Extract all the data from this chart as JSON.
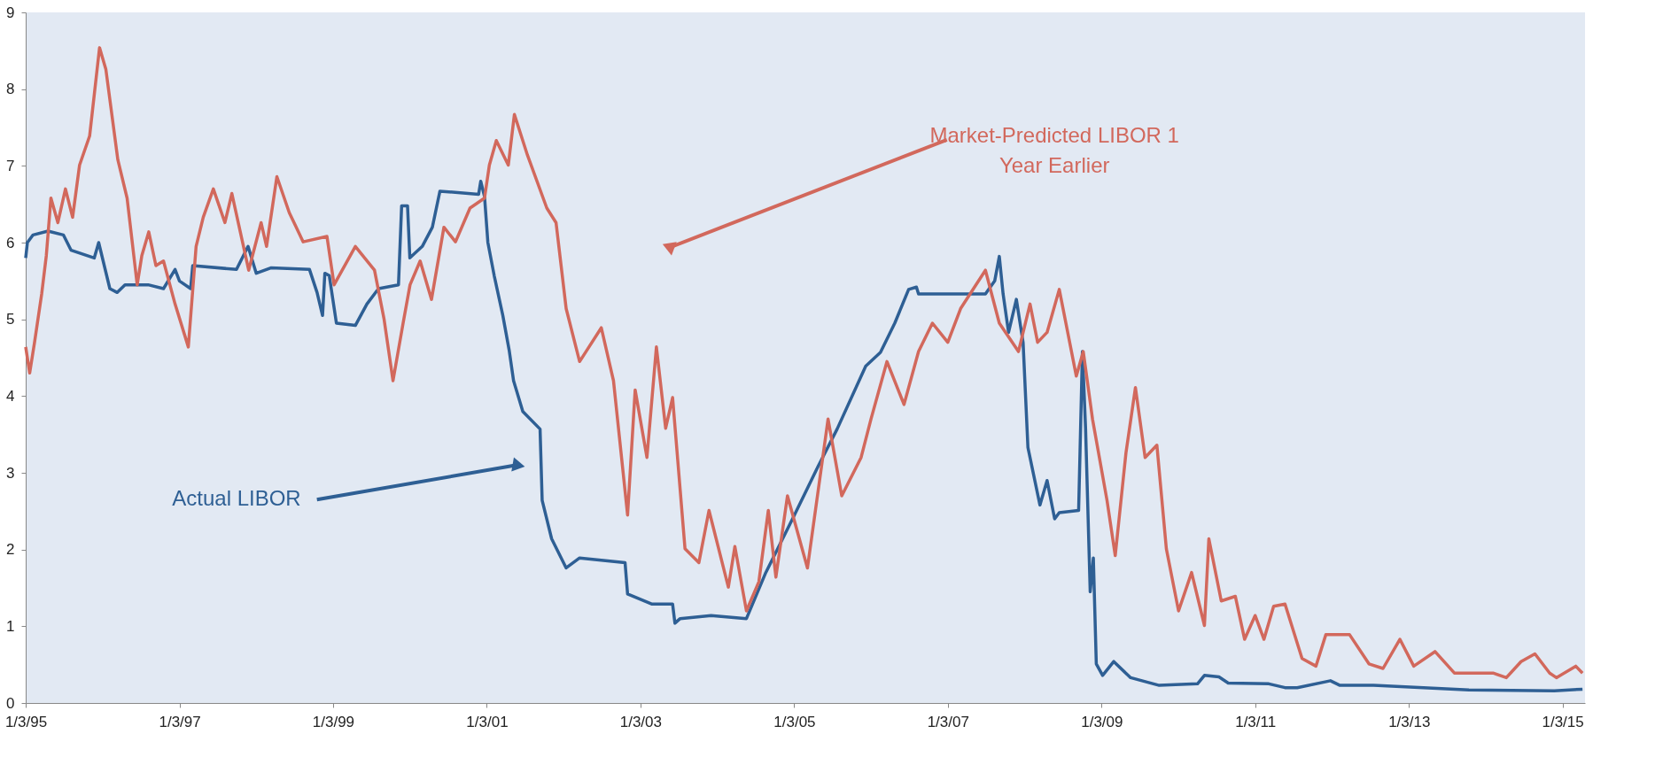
{
  "chart_data": {
    "type": "line",
    "xlim": [
      "1995-01-03",
      "2015-04-20"
    ],
    "ylim": [
      0,
      9
    ],
    "xticks": [
      {
        "value": "1995-01-03",
        "label": "1/3/95"
      },
      {
        "value": "1997-01-03",
        "label": "1/3/97"
      },
      {
        "value": "1999-01-03",
        "label": "1/3/99"
      },
      {
        "value": "2001-01-03",
        "label": "1/3/01"
      },
      {
        "value": "2003-01-03",
        "label": "1/3/03"
      },
      {
        "value": "2005-01-03",
        "label": "1/3/05"
      },
      {
        "value": "2007-01-03",
        "label": "1/3/07"
      },
      {
        "value": "2009-01-03",
        "label": "1/3/09"
      },
      {
        "value": "2011-01-03",
        "label": "1/3/11"
      },
      {
        "value": "2013-01-03",
        "label": "1/3/13"
      },
      {
        "value": "2015-01-03",
        "label": "1/3/15"
      }
    ],
    "yticks": [
      0,
      1,
      2,
      3,
      4,
      5,
      6,
      7,
      8,
      9
    ],
    "grid": false,
    "legend": false,
    "marker": "none",
    "line_style": "solid",
    "annotations": [
      {
        "text": "Actual LIBOR",
        "x": "2001-05-25",
        "y": 3.1
      },
      {
        "text": "Market-Predicted LIBOR 1\nYear Earlier",
        "x": "2003-05-25",
        "y": 5.94
      }
    ],
    "series": [
      {
        "color": "#2e5f94",
        "x": [
          "1995-01-03",
          "1995-01-11",
          "1995-02-07",
          "1995-04-19",
          "1995-07-01",
          "1995-08-07",
          "1995-11-25",
          "1995-12-16",
          "1996-02-07",
          "1996-03-13",
          "1996-04-19",
          "1996-08-07",
          "1996-10-19",
          "1996-12-13",
          "1997-01-03",
          "1997-02-25",
          "1997-03-07",
          "1997-10-01",
          "1997-11-25",
          "1998-01-03",
          "1998-03-13",
          "1998-09-13",
          "1998-10-19",
          "1998-11-14",
          "1998-11-25",
          "1998-12-16",
          "1999-01-19",
          "1999-04-19",
          "1999-06-13",
          "1999-08-07",
          "1999-11-10",
          "1999-11-25",
          "1999-12-23",
          "2000-01-03",
          "2000-03-02",
          "2000-04-19",
          "2000-05-25",
          "2000-11-25",
          "2000-12-05",
          "2000-12-23",
          "2001-01-08",
          "2001-02-07",
          "2001-03-20",
          "2001-04-19",
          "2001-05-10",
          "2001-06-23",
          "2001-09-13",
          "2001-09-23",
          "2001-11-07",
          "2002-01-15",
          "2002-03-20",
          "2002-10-22",
          "2002-11-03",
          "2003-02-25",
          "2003-06-05",
          "2003-06-16",
          "2003-07-11",
          "2003-12-05",
          "2004-05-21",
          "2004-08-21",
          "2005-01-04",
          "2005-04-26",
          "2005-07-26",
          "2005-12-09",
          "2006-02-17",
          "2006-04-26",
          "2006-07-01",
          "2006-08-07",
          "2006-08-17",
          "2007-07-01",
          "2007-08-14",
          "2007-09-05",
          "2007-09-23",
          "2007-10-19",
          "2007-11-25",
          "2007-12-27",
          "2008-01-19",
          "2008-03-16",
          "2008-04-19",
          "2008-05-25",
          "2008-06-16",
          "2008-09-16",
          "2008-10-04",
          "2008-10-19",
          "2008-11-10",
          "2008-11-25",
          "2008-12-09",
          "2009-01-08",
          "2009-03-02",
          "2009-05-21",
          "2009-10-04",
          "2010-04-04",
          "2010-05-07",
          "2010-07-15",
          "2010-08-28",
          "2011-03-09",
          "2011-05-25",
          "2011-07-22",
          "2011-12-27",
          "2012-02-10",
          "2012-07-19",
          "2013-10-15",
          "2014-11-25",
          "2015-04-08"
        ],
        "values": [
          5.8,
          6.0,
          6.1,
          6.15,
          6.1,
          5.9,
          5.8,
          6.0,
          5.4,
          5.35,
          5.45,
          5.45,
          5.4,
          5.65,
          5.5,
          5.4,
          5.7,
          5.65,
          5.95,
          5.6,
          5.67,
          5.65,
          5.35,
          5.05,
          5.6,
          5.57,
          4.95,
          4.92,
          5.2,
          5.4,
          5.45,
          6.48,
          6.48,
          5.8,
          5.95,
          6.2,
          6.67,
          6.63,
          6.8,
          6.6,
          6.0,
          5.57,
          5.05,
          4.6,
          4.2,
          3.8,
          3.57,
          2.64,
          2.14,
          1.76,
          1.89,
          1.83,
          1.42,
          1.29,
          1.29,
          1.04,
          1.1,
          1.14,
          1.1,
          1.7,
          2.45,
          3.08,
          3.57,
          4.39,
          4.57,
          4.95,
          5.39,
          5.42,
          5.33,
          5.33,
          5.5,
          5.82,
          5.33,
          4.83,
          5.26,
          4.7,
          3.33,
          2.58,
          2.9,
          2.4,
          2.48,
          2.51,
          4.58,
          3.58,
          1.45,
          1.89,
          0.51,
          0.36,
          0.54,
          0.33,
          0.23,
          0.25,
          0.36,
          0.34,
          0.26,
          0.25,
          0.2,
          0.2,
          0.29,
          0.23,
          0.23,
          0.17,
          0.16,
          0.18
        ]
      },
      {
        "color": "#d2685c",
        "x": [
          "1995-01-03",
          "1995-01-22",
          "1995-02-14",
          "1995-03-20",
          "1995-04-11",
          "1995-05-03",
          "1995-06-05",
          "1995-07-11",
          "1995-08-14",
          "1995-09-16",
          "1995-11-03",
          "1995-12-20",
          "1996-01-19",
          "1996-03-16",
          "1996-04-29",
          "1996-06-16",
          "1996-07-08",
          "1996-08-10",
          "1996-09-13",
          "1996-10-19",
          "1996-12-13",
          "1997-02-14",
          "1997-03-23",
          "1997-04-26",
          "1997-06-13",
          "1997-08-07",
          "1997-09-09",
          "1997-11-28",
          "1998-01-26",
          "1998-02-21",
          "1998-04-11",
          "1998-06-09",
          "1998-08-14",
          "1998-12-05",
          "1999-01-08",
          "1999-04-19",
          "1999-07-19",
          "1999-09-02",
          "1999-10-15",
          "1999-12-02",
          "2000-01-04",
          "2000-02-21",
          "2000-04-15",
          "2000-06-13",
          "2000-08-07",
          "2000-10-15",
          "2000-12-23",
          "2001-01-15",
          "2001-02-17",
          "2001-04-15",
          "2001-05-14",
          "2001-07-15",
          "2001-10-15",
          "2001-11-28",
          "2002-01-15",
          "2002-03-20",
          "2002-07-01",
          "2002-08-28",
          "2002-11-03",
          "2002-12-09",
          "2003-02-03",
          "2003-03-20",
          "2003-05-03",
          "2003-06-05",
          "2003-08-03",
          "2003-10-08",
          "2003-11-25",
          "2004-02-25",
          "2004-03-27",
          "2004-05-21",
          "2004-07-19",
          "2004-09-02",
          "2004-10-08",
          "2004-12-02",
          "2005-03-07",
          "2005-06-13",
          "2005-08-17",
          "2005-11-17",
          "2006-01-03",
          "2006-03-20",
          "2006-06-09",
          "2006-08-17",
          "2006-10-22",
          "2007-01-03",
          "2007-03-05",
          "2007-07-01",
          "2007-09-05",
          "2007-12-05",
          "2008-01-29",
          "2008-03-05",
          "2008-04-19",
          "2008-06-16",
          "2008-09-05",
          "2008-10-08",
          "2008-11-21",
          "2009-01-29",
          "2009-03-09",
          "2009-04-29",
          "2009-06-13",
          "2009-07-29",
          "2009-09-23",
          "2009-11-07",
          "2010-01-04",
          "2010-03-07",
          "2010-05-07",
          "2010-05-28",
          "2010-07-26",
          "2010-10-01",
          "2010-11-14",
          "2011-01-03",
          "2011-02-14",
          "2011-04-01",
          "2011-05-25",
          "2011-08-14",
          "2011-10-19",
          "2011-12-05",
          "2012-03-27",
          "2012-06-27",
          "2012-09-02",
          "2012-11-21",
          "2013-01-26",
          "2013-05-07",
          "2013-08-07",
          "2014-02-07",
          "2014-04-11",
          "2014-06-20",
          "2014-08-25",
          "2014-11-03",
          "2014-12-05",
          "2015-03-07",
          "2015-04-08"
        ],
        "values": [
          4.64,
          4.3,
          4.7,
          5.33,
          5.83,
          6.58,
          6.26,
          6.7,
          6.33,
          7.01,
          7.39,
          8.54,
          8.26,
          7.08,
          6.58,
          5.45,
          5.83,
          6.14,
          5.7,
          5.76,
          5.2,
          4.64,
          5.95,
          6.33,
          6.7,
          6.26,
          6.64,
          5.64,
          6.26,
          5.95,
          6.86,
          6.39,
          6.01,
          6.08,
          5.45,
          5.95,
          5.64,
          5.01,
          4.2,
          4.95,
          5.45,
          5.76,
          5.26,
          6.2,
          6.01,
          6.45,
          6.58,
          7.01,
          7.33,
          7.01,
          7.67,
          7.14,
          6.45,
          6.26,
          5.14,
          4.45,
          4.89,
          4.2,
          2.45,
          4.08,
          3.2,
          4.64,
          3.58,
          3.98,
          2.01,
          1.83,
          2.51,
          1.51,
          2.04,
          1.2,
          1.58,
          2.51,
          1.64,
          2.7,
          1.76,
          3.7,
          2.7,
          3.2,
          3.7,
          4.45,
          3.89,
          4.58,
          4.95,
          4.7,
          5.14,
          5.64,
          4.95,
          4.58,
          5.2,
          4.7,
          4.83,
          5.39,
          4.26,
          4.58,
          3.7,
          2.64,
          1.92,
          3.26,
          4.11,
          3.2,
          3.36,
          2.01,
          1.2,
          1.7,
          1.01,
          2.14,
          1.33,
          1.39,
          0.83,
          1.14,
          0.83,
          1.26,
          1.29,
          0.58,
          0.48,
          0.89,
          0.89,
          0.51,
          0.45,
          0.83,
          0.48,
          0.67,
          0.39,
          0.39,
          0.33,
          0.54,
          0.64,
          0.39,
          0.33,
          0.48,
          0.39
        ]
      }
    ]
  }
}
